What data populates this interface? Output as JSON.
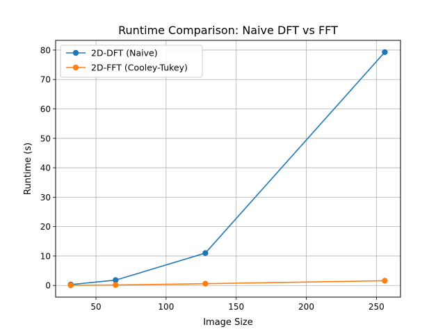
{
  "chart_data": {
    "type": "line",
    "title": "Runtime Comparison: Naive DFT vs FFT",
    "xlabel": "Image Size",
    "ylabel": "Runtime (s)",
    "xlim": [
      21.2,
      267.2
    ],
    "ylim": [
      -3.97,
      83.3
    ],
    "xticks": [
      50,
      100,
      150,
      200,
      250
    ],
    "yticks": [
      0,
      10,
      20,
      30,
      40,
      50,
      60,
      70,
      80
    ],
    "grid": true,
    "legend": "top-left",
    "x": [
      32,
      64,
      128,
      256
    ],
    "series": [
      {
        "name": "2D-DFT (Naive)",
        "color": "#1f77b4",
        "values": [
          0.3,
          1.8,
          11.0,
          79.3
        ]
      },
      {
        "name": "2D-FFT (Cooley-Tukey)",
        "color": "#ff7f0e",
        "values": [
          0.05,
          0.15,
          0.6,
          1.6
        ]
      }
    ]
  }
}
